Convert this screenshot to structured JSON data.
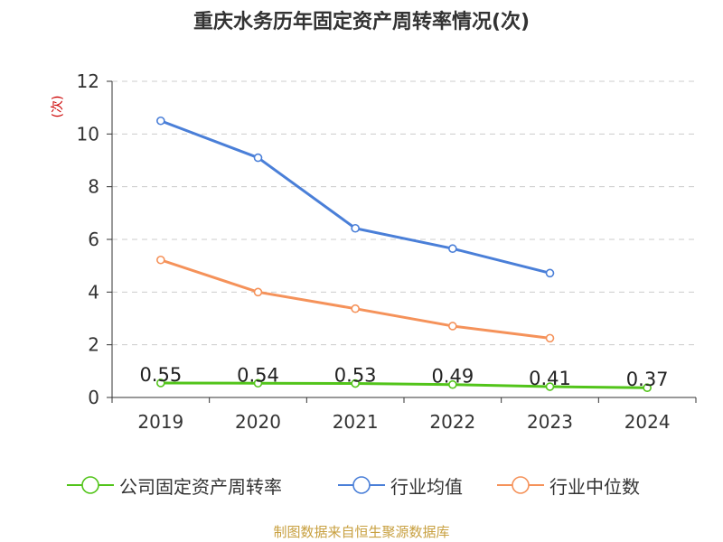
{
  "chart_data": {
    "type": "line",
    "title": "重庆水务历年固定资产周转率情况(次)",
    "ylabel": "(次)",
    "xlabel": "",
    "categories": [
      "2019",
      "2020",
      "2021",
      "2022",
      "2023",
      "2024"
    ],
    "ylim": [
      0,
      12
    ],
    "yticks": [
      0,
      2,
      4,
      6,
      8,
      10,
      12
    ],
    "grid": true,
    "legend_position": "bottom",
    "series": [
      {
        "name": "公司固定资产周转率",
        "color": "#52c41a",
        "values": [
          0.55,
          0.54,
          0.53,
          0.49,
          0.41,
          0.37
        ],
        "labels": [
          "0.55",
          "0.54",
          "0.53",
          "0.49",
          "0.41",
          "0.37"
        ]
      },
      {
        "name": "行业均值",
        "color": "#4a7fd8",
        "values": [
          10.5,
          9.1,
          6.42,
          5.65,
          4.72,
          null
        ]
      },
      {
        "name": "行业中位数",
        "color": "#f5925a",
        "values": [
          5.22,
          4.0,
          3.37,
          2.71,
          2.25,
          null
        ]
      }
    ]
  },
  "source": "制图数据来自恒生聚源数据库"
}
